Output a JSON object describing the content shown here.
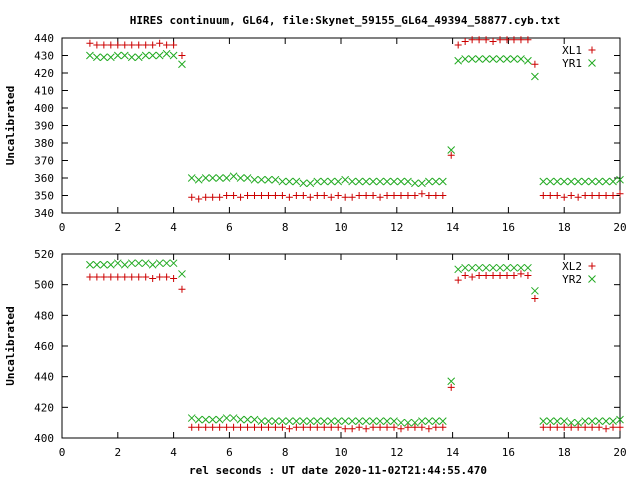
{
  "chart_data": [
    {
      "type": "scatter",
      "title": "HIRES continuum, GL64, file:Skynet_59155_GL64_49394_58877.cyb.txt",
      "ylabel": "Uncalibrated",
      "xlabel": "",
      "xlim": [
        0,
        20
      ],
      "ylim": [
        340,
        440
      ],
      "xticks": [
        "0",
        "2",
        "4",
        "6",
        "8",
        "10",
        "12",
        "14",
        "16",
        "18",
        "20"
      ],
      "yticks": [
        "340",
        "350",
        "360",
        "370",
        "380",
        "390",
        "400",
        "410",
        "420",
        "430",
        "440"
      ],
      "legend_position": "top-right",
      "grid": false,
      "series": [
        {
          "name": "XL1",
          "marker": "plus",
          "color": "#cc0000",
          "x": [
            1.0,
            1.25,
            1.5,
            1.75,
            2.0,
            2.25,
            2.5,
            2.75,
            3.0,
            3.25,
            3.5,
            3.75,
            4.0,
            4.3,
            4.65,
            4.9,
            5.15,
            5.4,
            5.65,
            5.9,
            6.15,
            6.4,
            6.65,
            6.9,
            7.15,
            7.4,
            7.65,
            7.9,
            8.15,
            8.4,
            8.65,
            8.9,
            9.15,
            9.4,
            9.65,
            9.9,
            10.15,
            10.4,
            10.65,
            10.9,
            11.15,
            11.4,
            11.65,
            11.9,
            12.15,
            12.4,
            12.65,
            12.9,
            13.15,
            13.4,
            13.65,
            13.95,
            14.2,
            14.45,
            14.7,
            14.95,
            15.2,
            15.45,
            15.7,
            15.95,
            16.2,
            16.45,
            16.7,
            16.95,
            17.25,
            17.5,
            17.75,
            18.0,
            18.25,
            18.5,
            18.75,
            19.0,
            19.25,
            19.5,
            19.75,
            20.0
          ],
          "y": [
            437,
            436,
            436,
            436,
            436,
            436,
            436,
            436,
            436,
            436,
            437,
            436,
            436,
            430,
            349,
            348,
            349,
            349,
            349,
            350,
            350,
            349,
            350,
            350,
            350,
            350,
            350,
            350,
            349,
            350,
            350,
            349,
            350,
            350,
            349,
            350,
            349,
            349,
            350,
            350,
            350,
            349,
            350,
            350,
            350,
            350,
            350,
            351,
            350,
            350,
            350,
            373,
            436,
            438,
            439,
            439,
            439,
            438,
            439,
            439,
            439,
            439,
            439,
            425,
            350,
            350,
            350,
            349,
            350,
            349,
            350,
            350,
            350,
            350,
            350,
            351
          ]
        },
        {
          "name": "YR1",
          "marker": "cross",
          "color": "#22aa22",
          "x": [
            1.0,
            1.25,
            1.5,
            1.75,
            2.0,
            2.25,
            2.5,
            2.75,
            3.0,
            3.25,
            3.5,
            3.75,
            4.0,
            4.3,
            4.65,
            4.9,
            5.15,
            5.4,
            5.65,
            5.9,
            6.15,
            6.4,
            6.65,
            6.9,
            7.15,
            7.4,
            7.65,
            7.9,
            8.15,
            8.4,
            8.65,
            8.9,
            9.15,
            9.4,
            9.65,
            9.9,
            10.15,
            10.4,
            10.65,
            10.9,
            11.15,
            11.4,
            11.65,
            11.9,
            12.15,
            12.4,
            12.65,
            12.9,
            13.15,
            13.4,
            13.65,
            13.95,
            14.2,
            14.45,
            14.7,
            14.95,
            15.2,
            15.45,
            15.7,
            15.95,
            16.2,
            16.45,
            16.7,
            16.95,
            17.25,
            17.5,
            17.75,
            18.0,
            18.25,
            18.5,
            18.75,
            19.0,
            19.25,
            19.5,
            19.75,
            20.0
          ],
          "y": [
            430,
            429,
            429,
            429,
            430,
            430,
            429,
            429,
            430,
            430,
            430,
            431,
            430,
            425,
            360,
            359,
            360,
            360,
            360,
            360,
            361,
            360,
            360,
            359,
            359,
            359,
            359,
            358,
            358,
            358,
            357,
            357,
            358,
            358,
            358,
            358,
            359,
            358,
            358,
            358,
            358,
            358,
            358,
            358,
            358,
            358,
            357,
            357,
            358,
            358,
            358,
            376,
            427,
            428,
            428,
            428,
            428,
            428,
            428,
            428,
            428,
            428,
            427,
            418,
            358,
            358,
            358,
            358,
            358,
            358,
            358,
            358,
            358,
            358,
            358,
            359
          ]
        }
      ]
    },
    {
      "type": "scatter",
      "title": "",
      "ylabel": "Uncalibrated",
      "xlabel": "rel seconds : UT date 2020-11-02T21:44:55.470",
      "xlim": [
        0,
        20
      ],
      "ylim": [
        400,
        520
      ],
      "xticks": [
        "0",
        "2",
        "4",
        "6",
        "8",
        "10",
        "12",
        "14",
        "16",
        "18",
        "20"
      ],
      "yticks": [
        "400",
        "420",
        "440",
        "460",
        "480",
        "500",
        "520"
      ],
      "legend_position": "top-right",
      "grid": false,
      "series": [
        {
          "name": "XL2",
          "marker": "plus",
          "color": "#cc0000",
          "x": [
            1.0,
            1.25,
            1.5,
            1.75,
            2.0,
            2.25,
            2.5,
            2.75,
            3.0,
            3.25,
            3.5,
            3.75,
            4.0,
            4.3,
            4.65,
            4.9,
            5.15,
            5.4,
            5.65,
            5.9,
            6.15,
            6.4,
            6.65,
            6.9,
            7.15,
            7.4,
            7.65,
            7.9,
            8.15,
            8.4,
            8.65,
            8.9,
            9.15,
            9.4,
            9.65,
            9.9,
            10.15,
            10.4,
            10.65,
            10.9,
            11.15,
            11.4,
            11.65,
            11.9,
            12.15,
            12.4,
            12.65,
            12.9,
            13.15,
            13.4,
            13.65,
            13.95,
            14.2,
            14.45,
            14.7,
            14.95,
            15.2,
            15.45,
            15.7,
            15.95,
            16.2,
            16.45,
            16.7,
            16.95,
            17.25,
            17.5,
            17.75,
            18.0,
            18.25,
            18.5,
            18.75,
            19.0,
            19.25,
            19.5,
            19.75,
            20.0
          ],
          "y": [
            505,
            505,
            505,
            505,
            505,
            505,
            505,
            505,
            505,
            504,
            505,
            505,
            504,
            497,
            407,
            407,
            407,
            407,
            407,
            407,
            407,
            407,
            407,
            407,
            407,
            407,
            407,
            407,
            406,
            407,
            407,
            407,
            407,
            407,
            407,
            407,
            406,
            406,
            407,
            406,
            407,
            407,
            407,
            407,
            406,
            407,
            407,
            407,
            406,
            407,
            407,
            433,
            503,
            506,
            505,
            506,
            506,
            506,
            506,
            506,
            506,
            507,
            506,
            491,
            407,
            407,
            407,
            407,
            407,
            407,
            407,
            407,
            407,
            406,
            407,
            407
          ]
        },
        {
          "name": "YR2",
          "marker": "cross",
          "color": "#22aa22",
          "x": [
            1.0,
            1.25,
            1.5,
            1.75,
            2.0,
            2.25,
            2.5,
            2.75,
            3.0,
            3.25,
            3.5,
            3.75,
            4.0,
            4.3,
            4.65,
            4.9,
            5.15,
            5.4,
            5.65,
            5.9,
            6.15,
            6.4,
            6.65,
            6.9,
            7.15,
            7.4,
            7.65,
            7.9,
            8.15,
            8.4,
            8.65,
            8.9,
            9.15,
            9.4,
            9.65,
            9.9,
            10.15,
            10.4,
            10.65,
            10.9,
            11.15,
            11.4,
            11.65,
            11.9,
            12.15,
            12.4,
            12.65,
            12.9,
            13.15,
            13.4,
            13.65,
            13.95,
            14.2,
            14.45,
            14.7,
            14.95,
            15.2,
            15.45,
            15.7,
            15.95,
            16.2,
            16.45,
            16.7,
            16.95,
            17.25,
            17.5,
            17.75,
            18.0,
            18.25,
            18.5,
            18.75,
            19.0,
            19.25,
            19.5,
            19.75,
            20.0
          ],
          "y": [
            513,
            513,
            513,
            513,
            514,
            513,
            514,
            514,
            514,
            513,
            514,
            514,
            514,
            507,
            413,
            412,
            412,
            412,
            412,
            413,
            413,
            412,
            412,
            412,
            411,
            411,
            411,
            411,
            411,
            411,
            411,
            411,
            411,
            411,
            411,
            411,
            411,
            411,
            411,
            411,
            411,
            411,
            411,
            411,
            410,
            410,
            410,
            411,
            411,
            411,
            411,
            437,
            510,
            511,
            511,
            511,
            511,
            511,
            511,
            511,
            511,
            511,
            511,
            496,
            411,
            411,
            411,
            411,
            410,
            410,
            411,
            411,
            411,
            411,
            411,
            412
          ]
        }
      ]
    }
  ]
}
